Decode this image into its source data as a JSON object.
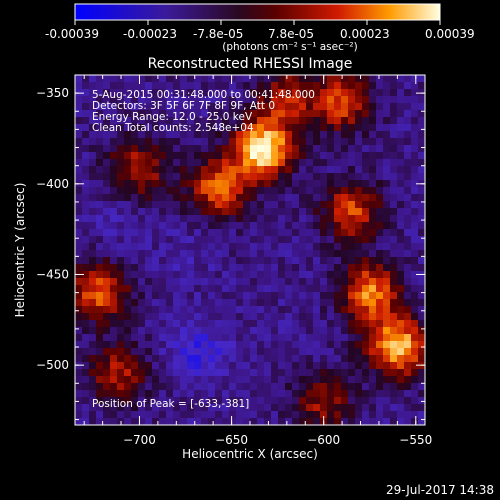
{
  "colorbar": {
    "tick_labels": [
      "-0.00039",
      "-0.00023",
      "-7.8e-05",
      "7.8e-05",
      "0.00023",
      "0.00039"
    ],
    "unit_label": "(photons cm⁻² s⁻¹ asec⁻²)"
  },
  "chart_data": {
    "type": "heatmap",
    "title": "Reconstructed RHESSI Image",
    "xlabel": "Heliocentric X (arcsec)",
    "ylabel": "Heliocentric Y (arcsec)",
    "xlim": [
      -735,
      -545
    ],
    "ylim": [
      -533,
      -340
    ],
    "x_ticks": [
      -700,
      -650,
      -600,
      -550
    ],
    "y_ticks": [
      -350,
      -400,
      -450,
      -500
    ],
    "x_tick_labels": [
      "−700",
      "−650",
      "−600",
      "−550"
    ],
    "y_tick_labels": [
      "−350",
      "−400",
      "−450",
      "−500"
    ],
    "color_range": [
      -0.00039,
      0.00039
    ],
    "colormap": "blue-purple-red-yellow-white",
    "annotations": [
      "5-Aug-2015 00:31:48.000 to 00:41:48.000",
      "Detectors: 3F 5F 6F 7F 8F 9F, Att 0",
      "Energy Range: 12.0 - 25.0 keV",
      "Clean    Total counts: 2.548e+04",
      "Position of Peak = [-633,-381]"
    ],
    "hotspots": [
      {
        "x": -633,
        "y": -381,
        "level": 0.00039
      },
      {
        "x": -560,
        "y": -490,
        "level": 0.00033
      },
      {
        "x": -575,
        "y": -460,
        "level": 0.00025
      },
      {
        "x": -585,
        "y": -415,
        "level": 0.00018
      },
      {
        "x": -657,
        "y": -402,
        "level": 0.00022
      },
      {
        "x": -700,
        "y": -392,
        "level": 0.00013
      },
      {
        "x": -722,
        "y": -460,
        "level": 0.0002
      },
      {
        "x": -712,
        "y": -505,
        "level": 0.00012
      },
      {
        "x": -590,
        "y": -355,
        "level": 0.00018
      },
      {
        "x": -620,
        "y": -353,
        "level": 0.00012
      },
      {
        "x": -600,
        "y": -520,
        "level": 0.0001
      }
    ],
    "coldspots": [
      {
        "x": -668,
        "y": -493,
        "level": -0.00026
      },
      {
        "x": -713,
        "y": -418,
        "level": -0.00016
      },
      {
        "x": -630,
        "y": -480,
        "level": -0.00013
      },
      {
        "x": -675,
        "y": -440,
        "level": -0.00016
      },
      {
        "x": -715,
        "y": -368,
        "level": -0.0001
      }
    ]
  },
  "footer": {
    "timestamp": "29-Jul-2017 14:38"
  }
}
